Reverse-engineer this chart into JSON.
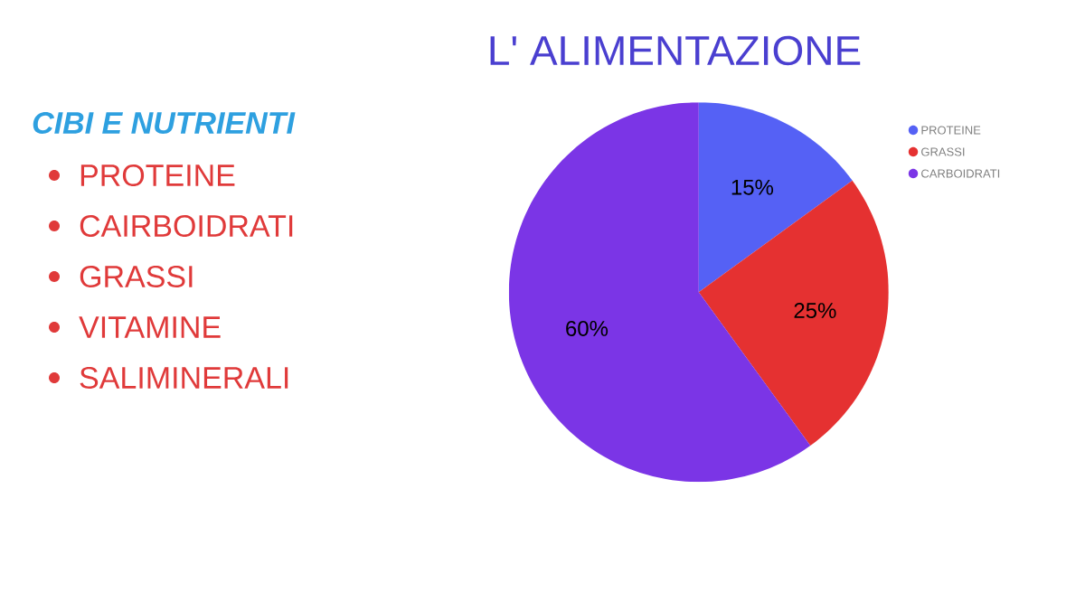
{
  "chart_data": {
    "type": "pie",
    "title": "L' ALIMENTAZIONE",
    "categories": [
      "PROTEINE",
      "GRASSI",
      "CARBOIDRATI"
    ],
    "values": [
      15,
      25,
      60
    ],
    "colors": [
      "#5561f5",
      "#e53131",
      "#7b35e6"
    ],
    "value_labels": [
      "15%",
      "25%",
      "60%"
    ],
    "legend": "top right",
    "annotations": [
      "CIBI E NUTRIENTI",
      "PROTEINE",
      "CAIRBOIDRATI",
      "GRASSI",
      "VITAMINE",
      "SALIMINERALI"
    ]
  }
}
